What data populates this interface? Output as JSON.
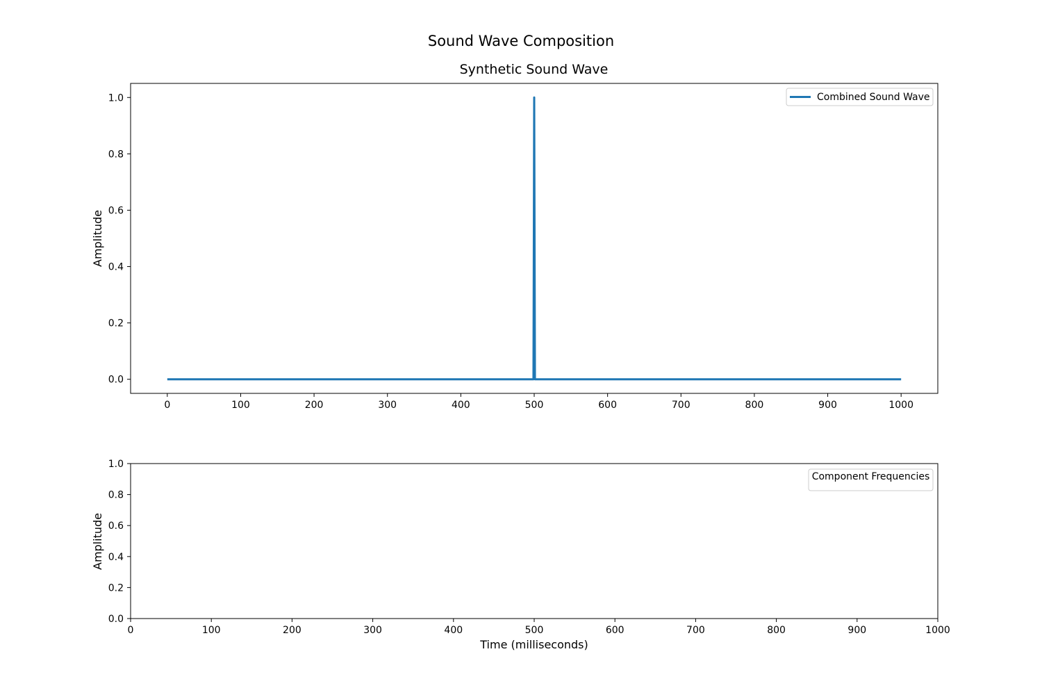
{
  "figure": {
    "suptitle": "Sound Wave Composition"
  },
  "chart_data": [
    {
      "type": "line",
      "title": "Synthetic Sound Wave",
      "xlabel": "",
      "ylabel": "Amplitude",
      "xlim": [
        -50,
        1050
      ],
      "ylim": [
        -0.05,
        1.05
      ],
      "xticks": [
        0,
        100,
        200,
        300,
        400,
        500,
        600,
        700,
        800,
        900,
        1000
      ],
      "yticks": [
        0.0,
        0.2,
        0.4,
        0.6,
        0.8,
        1.0
      ],
      "xtick_labels": [
        "0",
        "100",
        "200",
        "300",
        "400",
        "500",
        "600",
        "700",
        "800",
        "900",
        "1000"
      ],
      "ytick_labels": [
        "0.0",
        "0.2",
        "0.4",
        "0.6",
        "0.8",
        "1.0"
      ],
      "grid": false,
      "legend": {
        "placement": "top-right",
        "entries": [
          "Combined Sound Wave"
        ]
      },
      "series": [
        {
          "name": "Combined Sound Wave",
          "color": "#1f77b4",
          "x": [
            0,
            498,
            499,
            500,
            501,
            502,
            1000
          ],
          "y": [
            0.0,
            0.0,
            0.0,
            1.0,
            0.0,
            0.0,
            0.0
          ]
        }
      ]
    },
    {
      "type": "line",
      "title": "",
      "xlabel": "Time (milliseconds)",
      "ylabel": "Amplitude",
      "xlim": [
        0,
        1000
      ],
      "ylim": [
        0.0,
        1.0
      ],
      "xticks": [
        0,
        100,
        200,
        300,
        400,
        500,
        600,
        700,
        800,
        900,
        1000
      ],
      "yticks": [
        0.0,
        0.2,
        0.4,
        0.6,
        0.8,
        1.0
      ],
      "xtick_labels": [
        "0",
        "100",
        "200",
        "300",
        "400",
        "500",
        "600",
        "700",
        "800",
        "900",
        "1000"
      ],
      "ytick_labels": [
        "0.0",
        "0.2",
        "0.4",
        "0.6",
        "0.8",
        "1.0"
      ],
      "grid": false,
      "legend": {
        "placement": "top-right",
        "title": "Component Frequencies",
        "entries": []
      },
      "series": []
    }
  ]
}
